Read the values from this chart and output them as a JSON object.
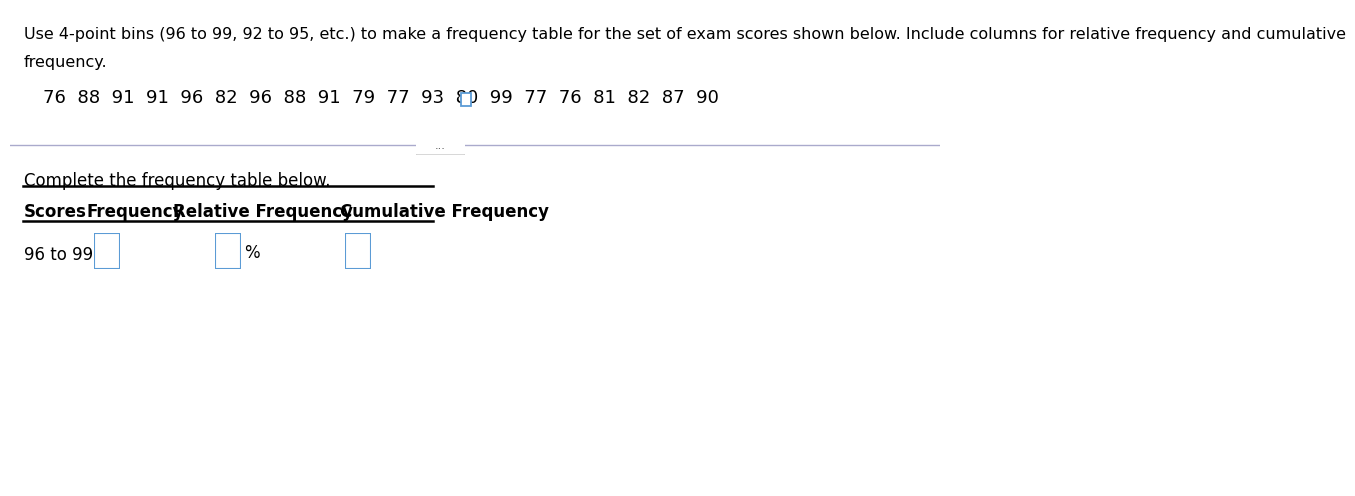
{
  "title_line1": "Use 4-point bins (96 to 99, 92 to 95, etc.) to make a frequency table for the set of exam scores shown below. Include columns for relative frequency and cumulative",
  "title_line2": "frequency.",
  "scores_line": "76  88  91  91  96  82  96  88  91  79  77  93  80  99  77  76  81  82  87  90",
  "divider_button_text": "...",
  "complete_text": "Complete the frequency table below.",
  "col_headers": [
    "Scores",
    "Frequency",
    "Relative Frequency",
    "Cumulative Frequency"
  ],
  "row_label": "96 to 99",
  "percent_sign": "%",
  "bg_color": "#ffffff",
  "text_color": "#000000",
  "box_color": "#5b9bd5",
  "header_line_color": "#000000",
  "divider_line_color": "#aaaacc",
  "title_fontsize": 11.5,
  "scores_fontsize": 13,
  "complete_fontsize": 12,
  "header_fontsize": 12,
  "row_fontsize": 12
}
